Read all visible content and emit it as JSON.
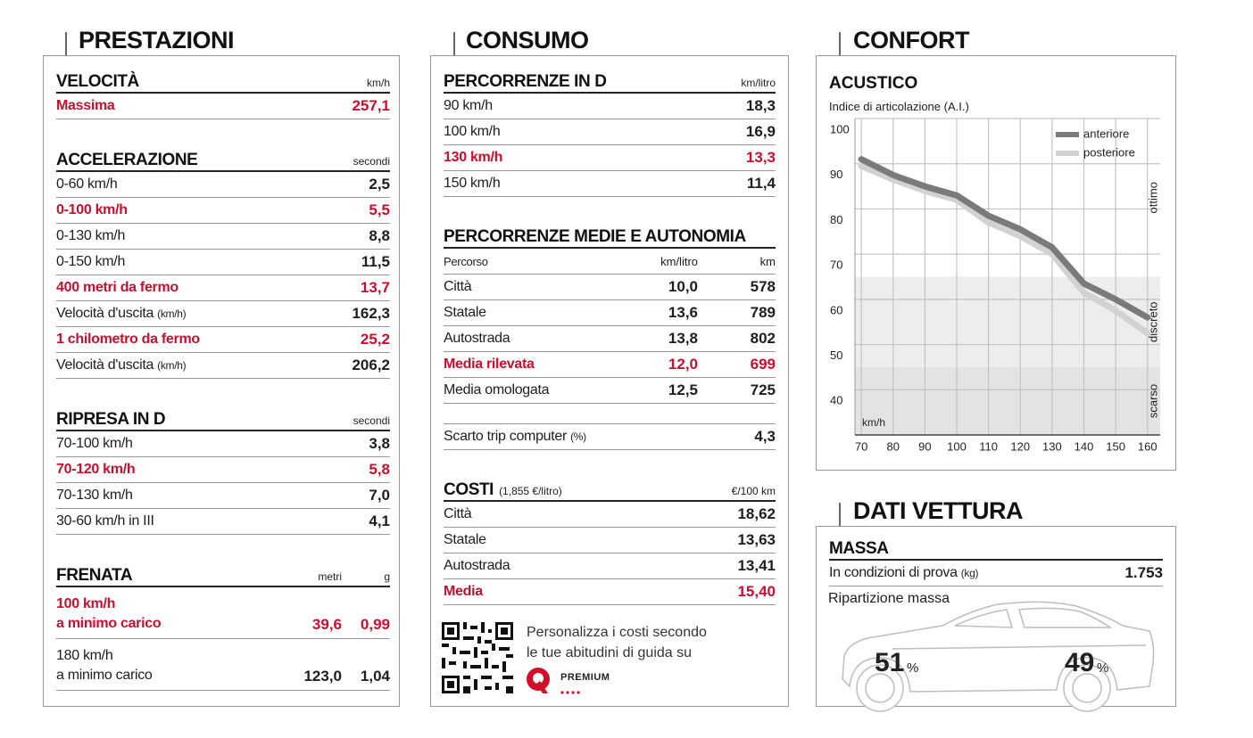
{
  "prestazioni": {
    "title": "PRESTAZIONI",
    "sections": [
      {
        "title": "VELOCITÀ",
        "columns": [
          "km/h"
        ],
        "rows": [
          {
            "label": "Massima",
            "values": [
              "257,1"
            ],
            "highlight": true
          }
        ]
      },
      {
        "title": "ACCELERAZIONE",
        "columns": [
          "secondi"
        ],
        "rows": [
          {
            "label": "0-60 km/h",
            "values": [
              "2,5"
            ]
          },
          {
            "label": "0-100 km/h",
            "values": [
              "5,5"
            ],
            "highlight": true
          },
          {
            "label": "0-130 km/h",
            "values": [
              "8,8"
            ]
          },
          {
            "label": "0-150 km/h",
            "values": [
              "11,5"
            ]
          },
          {
            "label": "400 metri da fermo",
            "values": [
              "13,7"
            ],
            "highlight": true
          },
          {
            "label": "Velocità d'uscita",
            "note": "(km/h)",
            "values": [
              "162,3"
            ]
          },
          {
            "label": "1 chilometro da fermo",
            "values": [
              "25,2"
            ],
            "highlight": true
          },
          {
            "label": "Velocità d'uscita",
            "note": "(km/h)",
            "values": [
              "206,2"
            ]
          }
        ]
      },
      {
        "title": "RIPRESA IN D",
        "columns": [
          "secondi"
        ],
        "rows": [
          {
            "label": "70-100 km/h",
            "values": [
              "3,8"
            ]
          },
          {
            "label": "70-120 km/h",
            "values": [
              "5,8"
            ],
            "highlight": true
          },
          {
            "label": "70-130 km/h",
            "values": [
              "7,0"
            ]
          },
          {
            "label": "30-60 km/h in III",
            "values": [
              "4,1"
            ]
          }
        ]
      },
      {
        "title": "FRENATA",
        "columns": [
          "metri",
          "g"
        ],
        "rows": [
          {
            "label": [
              "100 km/h",
              "a minimo carico"
            ],
            "values": [
              "39,6",
              "0,99"
            ],
            "highlight": true
          },
          {
            "label": [
              "180 km/h",
              "a minimo carico"
            ],
            "values": [
              "123,0",
              "1,04"
            ]
          }
        ]
      }
    ]
  },
  "consumo": {
    "title": "CONSUMO",
    "sections": [
      {
        "title": "PERCORRENZE IN D",
        "columns": [
          "km/litro"
        ],
        "rows": [
          {
            "label": "90 km/h",
            "values": [
              "18,3"
            ]
          },
          {
            "label": "100 km/h",
            "values": [
              "16,9"
            ]
          },
          {
            "label": "130 km/h",
            "values": [
              "13,3"
            ],
            "highlight": true
          },
          {
            "label": "150 km/h",
            "values": [
              "11,4"
            ]
          }
        ]
      },
      {
        "title": "PERCORRENZE MEDIE E AUTONOMIA",
        "header": [
          "Percorso",
          "km/litro",
          "km"
        ],
        "rows": [
          {
            "label": "Città",
            "values": [
              "10,0",
              "578"
            ]
          },
          {
            "label": "Statale",
            "values": [
              "13,6",
              "789"
            ]
          },
          {
            "label": "Autostrada",
            "values": [
              "13,8",
              "802"
            ]
          },
          {
            "label": "Media rilevata",
            "values": [
              "12,0",
              "699"
            ],
            "highlight": true
          },
          {
            "label": "Media omologata",
            "values": [
              "12,5",
              "725"
            ]
          }
        ]
      },
      {
        "rows": [
          {
            "label": "Scarto trip computer",
            "note": "(%)",
            "values": [
              "4,3"
            ]
          }
        ]
      },
      {
        "title": "COSTI",
        "note": "(1,855 €/litro)",
        "columns": [
          "€/100 km"
        ],
        "rows": [
          {
            "label": "Città",
            "values": [
              "18,62"
            ]
          },
          {
            "label": "Statale",
            "values": [
              "13,63"
            ]
          },
          {
            "label": "Autostrada",
            "values": [
              "13,41"
            ]
          },
          {
            "label": "Media",
            "values": [
              "15,40"
            ],
            "highlight": true
          }
        ]
      }
    ],
    "promo": {
      "text": [
        "Personalizza i costi secondo",
        "le tue abitudini di guida su"
      ],
      "brand": "PREMIUM"
    }
  },
  "confort": {
    "title": "CONFORT",
    "acustico": {
      "title": "ACUSTICO",
      "subtitle": "Indice di articolazione (A.I.)",
      "chart": {
        "type": "line",
        "x": [
          70,
          80,
          90,
          100,
          110,
          120,
          130,
          140,
          150,
          160
        ],
        "series": [
          {
            "name": "anteriore",
            "color": "#7a7a7a",
            "values": [
              91,
              87.5,
              85,
              83,
              78.5,
              75.5,
              71.5,
              63.5,
              60,
              56
            ]
          },
          {
            "name": "posteriore",
            "color": "#d2d2d2",
            "values": [
              89.5,
              86.5,
              84,
              82,
              77,
              74,
              70,
              61.5,
              57.5,
              52.5
            ]
          }
        ],
        "xlim": [
          68,
          164
        ],
        "ylim": [
          30,
          100
        ],
        "xticks": [
          70,
          80,
          90,
          100,
          110,
          120,
          130,
          140,
          150,
          160
        ],
        "yticks": [
          40,
          50,
          60,
          70,
          80,
          90,
          100
        ],
        "x_unit_label": "km/h",
        "grid": true,
        "legend": "upper right",
        "zones": [
          {
            "label": "ottimo",
            "from": 65,
            "to": 100
          },
          {
            "label": "discreto",
            "from": 45,
            "to": 65,
            "color": "#ededed"
          },
          {
            "label": "scarso",
            "from": 30,
            "to": 45,
            "color": "#e3e3e3"
          }
        ]
      }
    }
  },
  "dati_vettura": {
    "title": "DATI VETTURA",
    "massa": {
      "title": "MASSA",
      "rows": [
        {
          "label": "In condizioni di prova",
          "note": "(kg)",
          "values": [
            "1.753"
          ]
        }
      ]
    },
    "ripartizione": {
      "label": "Ripartizione massa",
      "front": "51",
      "rear": "49",
      "unit": "%"
    }
  }
}
